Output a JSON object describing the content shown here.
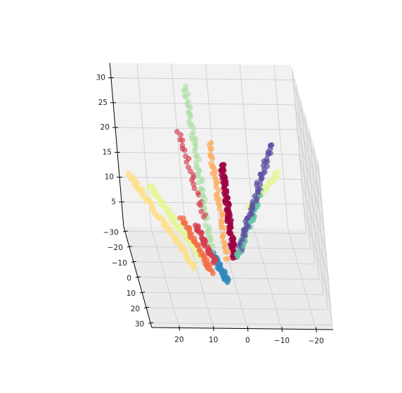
{
  "chart_data": {
    "type": "scatter",
    "subtype": "3d-scatter",
    "title": "",
    "xlabel": "",
    "ylabel": "",
    "zlabel": "",
    "grid": true,
    "legend": "none",
    "x_ticks": [
      "20",
      "10",
      "0",
      "−10",
      "−20"
    ],
    "y_ticks": [
      "−30",
      "−20",
      "−10",
      "0",
      "10",
      "20",
      "30"
    ],
    "z_ticks": [
      "5",
      "10",
      "15",
      "20",
      "25",
      "30"
    ],
    "xlim": [
      -25,
      28
    ],
    "ylim": [
      -33,
      33
    ],
    "zlim": [
      0,
      33
    ],
    "colors": {
      "pane_back": "#f2f2f2",
      "pane_side": "#ebebeb",
      "grid": "#cfcfcf"
    },
    "series": [
      {
        "color": "#fee08b",
        "alpha": 0.75,
        "from": [
          26,
          -22,
          14
        ],
        "to": [
          11,
          0,
          2
        ],
        "points": 70
      },
      {
        "color": "#e6f598",
        "alpha": 0.75,
        "from": [
          20,
          -24,
          11
        ],
        "to": [
          9,
          -4,
          3
        ],
        "points": 60
      },
      {
        "color": "#abdda4",
        "alpha": 0.6,
        "from": [
          7,
          -28,
          30
        ],
        "to": [
          5,
          -6,
          2
        ],
        "points": 70
      },
      {
        "color": "#d53e4f",
        "alpha": 0.65,
        "from": [
          10,
          -28,
          21
        ],
        "to": [
          6,
          -10,
          9
        ],
        "points": 25
      },
      {
        "color": "#d53e4f",
        "alpha": 0.75,
        "from": [
          9,
          -8,
          8
        ],
        "to": [
          5,
          -1,
          3
        ],
        "points": 40
      },
      {
        "color": "#f46d43",
        "alpha": 0.75,
        "from": [
          13,
          -10,
          9
        ],
        "to": [
          6,
          0,
          1
        ],
        "points": 40
      },
      {
        "color": "#fdae61",
        "alpha": 0.75,
        "from": [
          1,
          -30,
          18
        ],
        "to": [
          1,
          -3,
          3
        ],
        "points": 45
      },
      {
        "color": "#9e0142",
        "alpha": 0.85,
        "from": [
          -2,
          -30,
          14
        ],
        "to": [
          -1,
          -4,
          3
        ],
        "points": 80
      },
      {
        "color": "#66c2a5",
        "alpha": 0.75,
        "from": [
          -12,
          -24,
          10
        ],
        "to": [
          -2,
          -4,
          3
        ],
        "points": 55
      },
      {
        "color": "#5e4fa2",
        "alpha": 0.7,
        "from": [
          -17,
          -30,
          18
        ],
        "to": [
          -3,
          -6,
          4
        ],
        "points": 60
      },
      {
        "color": "#e6f598",
        "alpha": 0.75,
        "from": [
          -18,
          -30,
          12
        ],
        "to": [
          -8,
          -20,
          8
        ],
        "points": 30
      },
      {
        "color": "#3288bd",
        "alpha": 0.8,
        "from": [
          5,
          -6,
          3
        ],
        "to": [
          2,
          2,
          0
        ],
        "points": 50
      }
    ]
  }
}
